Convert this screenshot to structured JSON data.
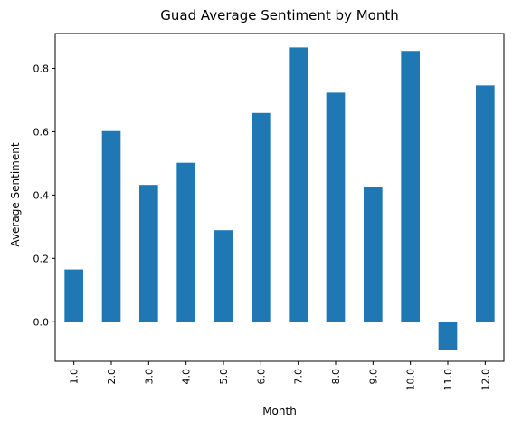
{
  "chart_data": {
    "type": "bar",
    "title": "Guad Average Sentiment by Month",
    "xlabel": "Month",
    "ylabel": "Average Sentiment",
    "categories": [
      "1.0",
      "2.0",
      "3.0",
      "4.0",
      "5.0",
      "6.0",
      "7.0",
      "8.0",
      "9.0",
      "10.0",
      "11.0",
      "12.0"
    ],
    "values": [
      0.165,
      0.602,
      0.432,
      0.502,
      0.289,
      0.659,
      0.866,
      0.723,
      0.424,
      0.855,
      -0.088,
      0.746
    ],
    "ylim": [
      -0.125,
      0.91
    ],
    "yticks": [
      0.0,
      0.2,
      0.4,
      0.6,
      0.8
    ],
    "ytick_labels": [
      "0.0",
      "0.2",
      "0.4",
      "0.6",
      "0.8"
    ],
    "bar_color": "#1f77b4",
    "grid": false,
    "legend": "none"
  }
}
